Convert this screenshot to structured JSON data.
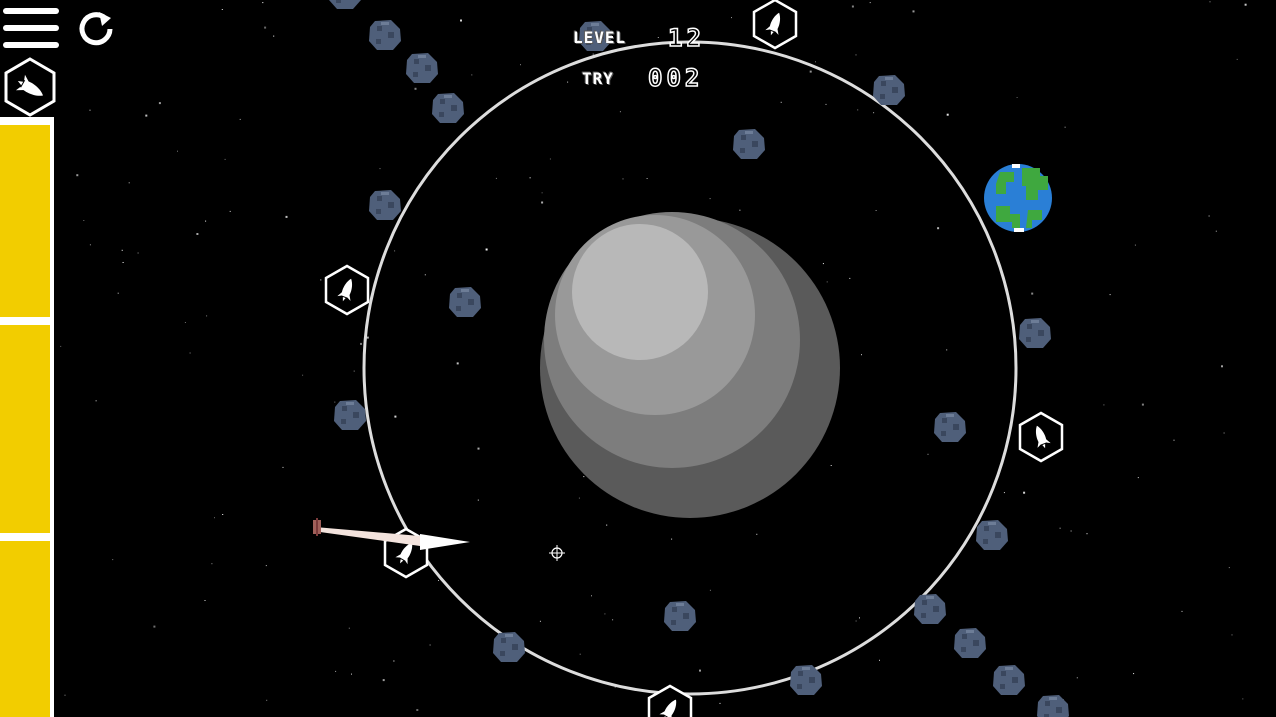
{
  "hud": {
    "level_label": "LEVEL",
    "level_value": "12",
    "try_label": "TRY",
    "try_value": "002"
  },
  "toolbar": {
    "menu_icon": "hamburger-menu-icon",
    "restart_icon": "restart-icon",
    "rocket_icon": "rocket-icon"
  },
  "fuel": {
    "cells": 3,
    "color": "#f2cd00"
  },
  "colors": {
    "background": "#000000",
    "orbit": "#dddddd",
    "asteroid": "#4f5f7a",
    "fuel": "#f2cd00",
    "earth_ocean": "#2a7fd6",
    "earth_land": "#3fa83f"
  }
}
